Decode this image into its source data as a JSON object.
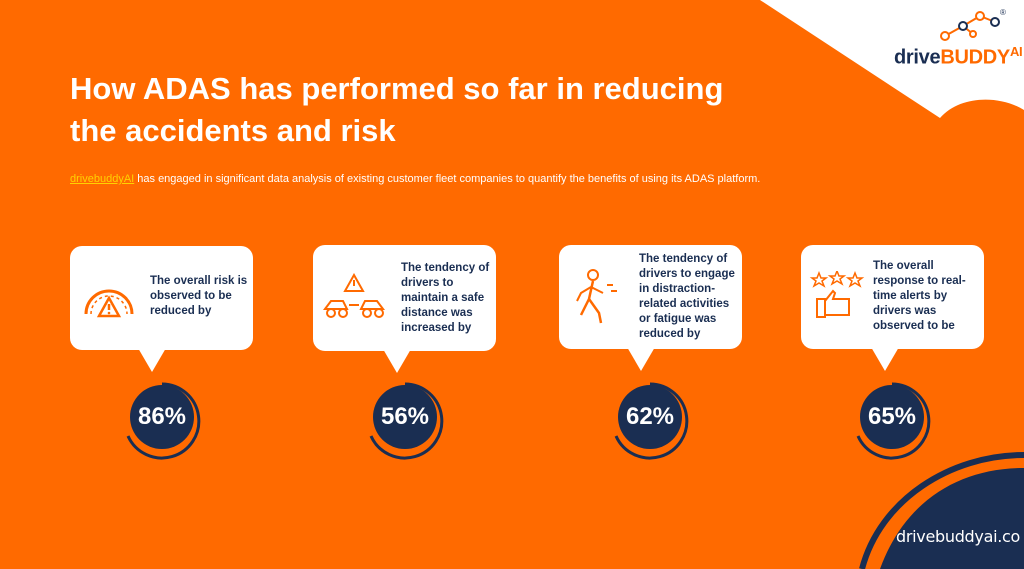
{
  "brand": {
    "logo_drive": "drive",
    "logo_buddy": "BUDDY",
    "logo_ai": "AI",
    "registered": "®"
  },
  "title": "How ADAS has performed so far in reducing the accidents and risk",
  "subtitle": {
    "link": "drivebuddyAI",
    "text": " has engaged in significant data analysis of existing customer fleet companies to quantify the benefits of using its ADAS platform."
  },
  "stats": [
    {
      "text": "The overall risk is observed to be reduced by",
      "value": "86%",
      "icon": "risk-gauge-icon"
    },
    {
      "text": "The tendency of drivers to maintain a safe distance was increased by",
      "value": "56%",
      "icon": "safe-distance-icon"
    },
    {
      "text": "The tendency of drivers to engage in distraction-related activities or fatigue was reduced by",
      "value": "62%",
      "icon": "fatigue-icon"
    },
    {
      "text": "The overall response to real-time alerts by drivers was observed to be",
      "value": "65%",
      "icon": "thumbs-up-stars-icon"
    }
  ],
  "footer": {
    "url": "drivebuddyai.co"
  },
  "colors": {
    "background": "#ff6a00",
    "navy": "#1a2e52",
    "accent": "#ff6a00",
    "link": "#ffd200"
  }
}
